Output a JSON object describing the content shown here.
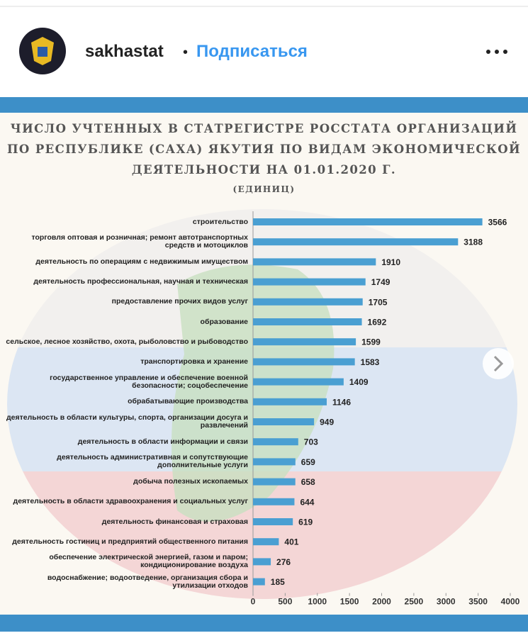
{
  "header": {
    "username": "sakhastat",
    "separator": "•",
    "follow": "Подписаться"
  },
  "chart_data": {
    "type": "barh",
    "title": [
      "ЧИСЛО УЧТЕННЫХ В СТАТРЕГИСТРЕ РОССТАТА ОРГАНИЗАЦИЙ",
      "ПО РЕСПУБЛИКЕ (САХА) ЯКУТИЯ ПО ВИДАМ ЭКОНОМИЧЕСКОЙ",
      "ДЕЯТЕЛЬНОСТИ НА 01.01.2020 Г."
    ],
    "subtitle": "(ЕДИНИЦ)",
    "categories": [
      "строительство",
      "торговля оптовая и розничная; ремонт автотранспортных средств и мотоциклов",
      "деятельность по операциям с недвижимым имуществом",
      "деятельность профессиональная, научная и техническая",
      "предоставление прочих видов услуг",
      "образование",
      "сельское, лесное хозяйство, охота, рыболовство и рыбоводство",
      "транспортировка и хранение",
      "государственное управление и обеспечение военной безопасности; соцобеспечение",
      "обрабатывающие производства",
      "деятельность в области культуры, спорта, организации досуга и развлечений",
      "деятельность в области информации и связи",
      "деятельность административная и сопутствующие дополнительные услуги",
      "добыча полезных ископаемых",
      "деятельность в области здравоохранения и социальных услуг",
      "деятельность финансовая и страховая",
      "деятельность гостиниц и предприятий общественного питания",
      "обеспечение электрической энергией, газом и паром; кондиционирование воздуха",
      "водоснабжение; водоотведение, организация сбора и утилизации отходов"
    ],
    "values": [
      3566,
      3188,
      1910,
      1749,
      1705,
      1692,
      1599,
      1583,
      1409,
      1146,
      949,
      703,
      659,
      658,
      644,
      619,
      401,
      276,
      185
    ],
    "color": "#4a9fd2",
    "xlim": [
      0,
      4000
    ],
    "xticks": [
      0,
      500,
      1000,
      1500,
      2000,
      2500,
      3000,
      3500,
      4000
    ],
    "grid": false
  }
}
